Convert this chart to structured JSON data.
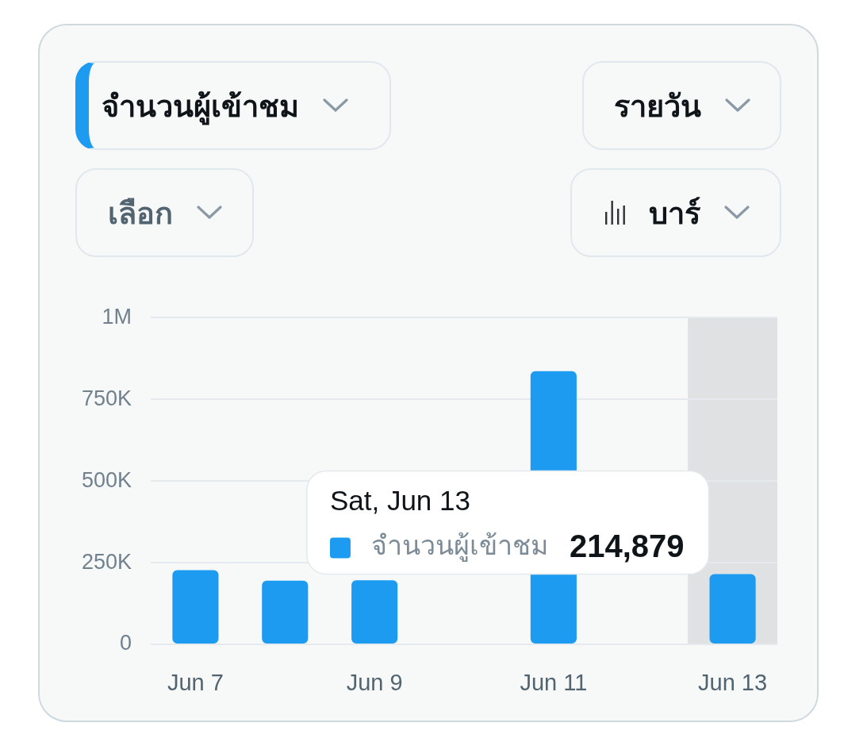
{
  "chart_data": {
    "type": "bar",
    "title": "จำนวนผู้เข้าชม",
    "categories": [
      "Jun 7",
      null,
      "Jun 9",
      null,
      "Jun 11",
      null,
      "Jun 13"
    ],
    "series": [
      {
        "name": "จำนวนผู้เข้าชม",
        "color": "#1d9bf0",
        "values": [
          227000,
          195000,
          196000,
          null,
          836000,
          null,
          214879
        ]
      }
    ],
    "ylim": [
      0,
      1000000
    ],
    "yticks": [
      0,
      {
        "value": 250000,
        "label": "250K"
      },
      {
        "value": 500000,
        "label": "500K"
      },
      {
        "value": 750000,
        "label": "750K"
      },
      {
        "value": 1000000,
        "label": "1M"
      }
    ],
    "grid": "y",
    "bands": [
      {
        "axis": "x",
        "from": "Jun 13",
        "to": "Jun 13",
        "color": "#dfe1e3"
      }
    ],
    "annotations": [
      "รายวัน",
      "เลือก",
      "บาร์",
      "Sat, Jun 13",
      "214,879"
    ]
  }
}
